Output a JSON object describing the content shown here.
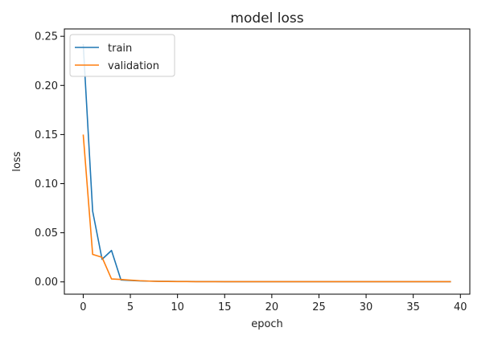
{
  "chart_data": {
    "type": "line",
    "title": "model loss",
    "xlabel": "epoch",
    "ylabel": "loss",
    "xlim": [
      -2,
      41
    ],
    "ylim": [
      -0.0125,
      0.2575
    ],
    "xticks": [
      0,
      5,
      10,
      15,
      20,
      25,
      30,
      35,
      40
    ],
    "yticks": [
      0.0,
      0.05,
      0.1,
      0.15,
      0.2,
      0.25
    ],
    "xtick_labels": [
      "0",
      "5",
      "10",
      "15",
      "20",
      "25",
      "30",
      "35",
      "40"
    ],
    "ytick_labels": [
      "0.00",
      "0.05",
      "0.10",
      "0.15",
      "0.20",
      "0.25"
    ],
    "grid": false,
    "legend_position": "top-left",
    "x": [
      0,
      1,
      2,
      3,
      4,
      5,
      6,
      7,
      8,
      9,
      10,
      11,
      12,
      13,
      14,
      15,
      16,
      17,
      18,
      19,
      20,
      21,
      22,
      23,
      24,
      25,
      26,
      27,
      28,
      29,
      30,
      31,
      32,
      33,
      34,
      35,
      36,
      37,
      38,
      39
    ],
    "series": [
      {
        "name": "train",
        "color": "#1f77b4",
        "values": [
          0.242,
          0.072,
          0.023,
          0.032,
          0.002,
          0.0015,
          0.001,
          0.0008,
          0.0006,
          0.0005,
          0.0004,
          0.0004,
          0.0003,
          0.0003,
          0.0003,
          0.0002,
          0.0002,
          0.0002,
          0.0002,
          0.0002,
          0.0002,
          0.0002,
          0.0002,
          0.0002,
          0.0002,
          0.0002,
          0.0002,
          0.0002,
          0.0002,
          0.0002,
          0.0002,
          0.0002,
          0.0002,
          0.0002,
          0.0002,
          0.0002,
          0.0002,
          0.0002,
          0.0002,
          0.0002
        ]
      },
      {
        "name": "validation",
        "color": "#ff7f0e",
        "values": [
          0.15,
          0.028,
          0.025,
          0.003,
          0.0025,
          0.0018,
          0.0012,
          0.0008,
          0.0005,
          0.0004,
          0.0003,
          0.0003,
          0.0002,
          0.0002,
          0.0002,
          0.0002,
          0.0002,
          0.0002,
          0.0002,
          0.0002,
          0.0002,
          0.0002,
          0.0002,
          0.0002,
          0.0002,
          0.0002,
          0.0002,
          0.0002,
          0.0002,
          0.0002,
          0.0002,
          0.0002,
          0.0002,
          0.0002,
          0.0002,
          0.0002,
          0.0002,
          0.0002,
          0.0002,
          0.0002
        ]
      }
    ]
  }
}
